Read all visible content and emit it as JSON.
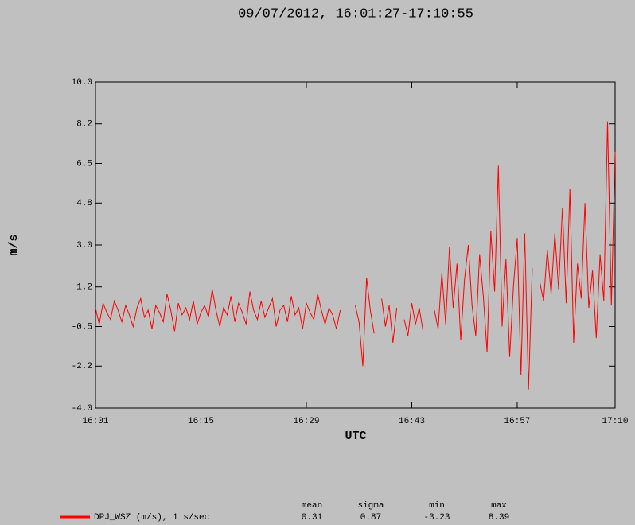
{
  "chart_data": {
    "type": "line",
    "title": "09/07/2012, 16:01:27-17:10:55",
    "x_label": "UTC",
    "y_label": "m/s",
    "xlim": [
      961,
      1030
    ],
    "ylim": [
      -4,
      10
    ],
    "xticks": [
      {
        "value": 961,
        "label": "16:01"
      },
      {
        "value": 975,
        "label": "16:15"
      },
      {
        "value": 989,
        "label": "16:29"
      },
      {
        "value": 1003,
        "label": "16:43"
      },
      {
        "value": 1017,
        "label": "16:57"
      },
      {
        "value": 1030,
        "label": "17:10"
      }
    ],
    "yticks": [
      {
        "value": -4,
        "label": "-4.0"
      },
      -2.2,
      -0.5,
      1.2,
      {
        "value": 3,
        "label": "3.0"
      },
      4.8,
      6.5,
      8.2,
      {
        "value": 10,
        "label": "10.0"
      }
    ],
    "grid": false,
    "x": [
      961,
      961.5,
      962,
      962.5,
      963,
      963.5,
      964,
      964.5,
      965,
      965.5,
      966,
      966.5,
      967,
      967.5,
      968,
      968.5,
      969,
      969.5,
      970,
      970.5,
      971,
      971.5,
      972,
      972.5,
      973,
      973.5,
      974,
      974.5,
      975,
      975.5,
      976,
      976.5,
      977,
      977.5,
      978,
      978.5,
      979,
      979.5,
      980,
      980.5,
      981,
      981.5,
      982,
      982.5,
      983,
      983.5,
      984,
      984.5,
      985,
      985.5,
      986,
      986.5,
      987,
      987.5,
      988,
      988.5,
      989,
      989.5,
      990,
      990.5,
      991,
      991.5,
      992,
      992.5,
      993,
      993.5,
      994,
      994.5,
      995,
      995.5,
      996,
      996.5,
      997,
      997.5,
      998,
      998.5,
      999,
      999.5,
      1000,
      1000.5,
      1001,
      1001.5,
      1002,
      1002.5,
      1003,
      1003.5,
      1004,
      1004.5,
      1005,
      1005.5,
      1006,
      1006.5,
      1007,
      1007.5,
      1008,
      1008.5,
      1009,
      1009.5,
      1010,
      1010.5,
      1011,
      1011.5,
      1012,
      1012.5,
      1013,
      1013.5,
      1014,
      1014.5,
      1015,
      1015.5,
      1016,
      1016.5,
      1017,
      1017.5,
      1018,
      1018.5,
      1019,
      1019.5,
      1020,
      1020.5,
      1021,
      1021.5,
      1022,
      1022.5,
      1023,
      1023.5,
      1024,
      1024.5,
      1025,
      1025.5,
      1026,
      1026.5,
      1027,
      1027.5,
      1028,
      1028.5,
      1029,
      1029.5,
      1030
    ],
    "series": [
      {
        "name": "DPJ_WSZ (m/s), 1 s/sec",
        "color": "#ff0000",
        "values": [
          0.3,
          -0.4,
          0.5,
          0.1,
          -0.2,
          0.6,
          0.2,
          -0.3,
          0.4,
          0.0,
          -0.5,
          0.3,
          0.7,
          -0.1,
          0.2,
          -0.6,
          0.4,
          0.1,
          -0.3,
          0.9,
          0.2,
          -0.7,
          0.5,
          0.0,
          0.3,
          -0.2,
          0.6,
          -0.4,
          0.1,
          0.4,
          -0.1,
          1.1,
          0.2,
          -0.5,
          0.3,
          0.0,
          0.8,
          -0.3,
          0.5,
          0.1,
          -0.4,
          1.0,
          0.2,
          -0.2,
          0.6,
          -0.1,
          0.3,
          0.7,
          -0.5,
          0.2,
          0.4,
          -0.3,
          0.8,
          0.0,
          0.3,
          -0.6,
          0.5,
          0.1,
          -0.2,
          0.9,
          0.2,
          -0.4,
          0.3,
          0.0,
          -0.6,
          0.2,
          null,
          null,
          null,
          0.4,
          -0.3,
          -2.2,
          1.6,
          0.2,
          -0.8,
          null,
          0.7,
          -0.5,
          0.4,
          -1.2,
          0.3,
          null,
          -0.2,
          -0.9,
          0.5,
          -0.4,
          0.3,
          -0.7,
          null,
          null,
          0.2,
          -0.6,
          1.8,
          -0.4,
          2.9,
          0.3,
          2.2,
          -1.1,
          1.5,
          3.0,
          0.4,
          -0.9,
          2.6,
          0.8,
          -1.6,
          3.6,
          1.0,
          6.4,
          -0.5,
          2.4,
          -1.8,
          1.2,
          3.3,
          -2.6,
          3.5,
          -3.2,
          2.0,
          null,
          1.4,
          0.6,
          2.8,
          0.9,
          3.5,
          1.1,
          4.6,
          0.5,
          5.4,
          -1.2,
          2.2,
          0.7,
          4.8,
          0.3,
          1.9,
          -1.0,
          2.6,
          0.6,
          8.3,
          0.4,
          7.0
        ]
      }
    ],
    "stats": {
      "headers": [
        "mean",
        "sigma",
        "min",
        "max"
      ],
      "values": [
        0.31,
        0.87,
        -3.23,
        8.39
      ]
    }
  }
}
